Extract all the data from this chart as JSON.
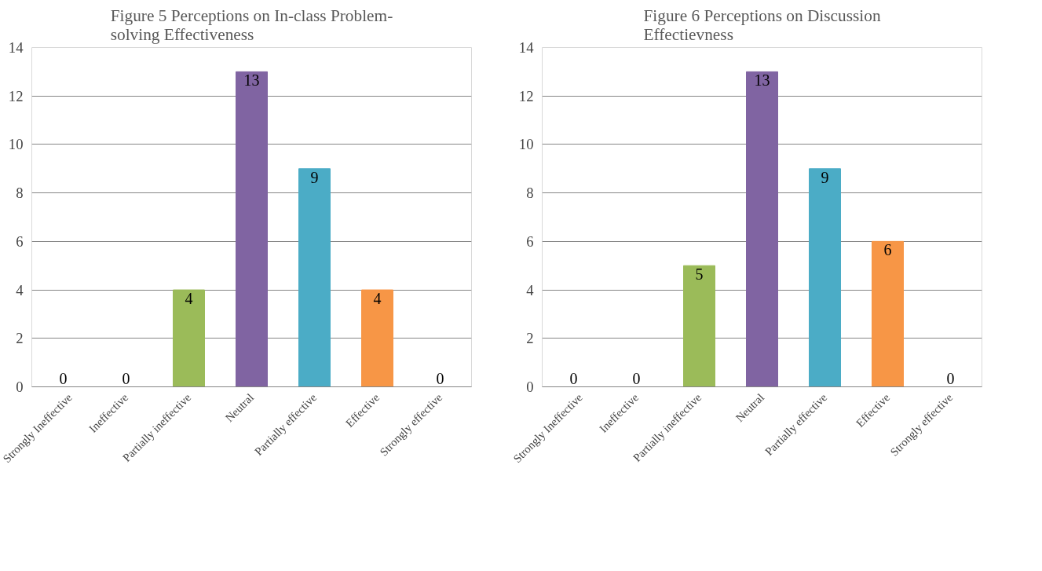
{
  "chart_data": [
    {
      "type": "bar",
      "title": "Figure 5 Perceptions on In-class Problem-solving  Effectiveness",
      "categories": [
        "Strongly Ineffective",
        "Ineffective",
        "Partially ineffective",
        "Neutral",
        "Partially effective",
        "Effective",
        "Strongly effective"
      ],
      "values": [
        0,
        0,
        4,
        13,
        9,
        4,
        0
      ],
      "colors": [
        "#4f81bd",
        "#c0504d",
        "#9bbb59",
        "#8064a2",
        "#4bacc6",
        "#f79646",
        "#2c4d75"
      ],
      "ylim": [
        0,
        14
      ],
      "yticks": [
        0,
        2,
        4,
        6,
        8,
        10,
        12,
        14
      ],
      "grid": "y",
      "data_labels": true
    },
    {
      "type": "bar",
      "title": "Figure 6 Perceptions on Discussion Effectievness",
      "categories": [
        "Strongly Ineffective",
        "Ineffective",
        "Partially ineffective",
        "Neutral",
        "Partially effective",
        "Effective",
        "Strongly effective"
      ],
      "values": [
        0,
        0,
        5,
        13,
        9,
        6,
        0
      ],
      "colors": [
        "#4f81bd",
        "#c0504d",
        "#9bbb59",
        "#8064a2",
        "#4bacc6",
        "#f79646",
        "#2c4d75"
      ],
      "ylim": [
        0,
        14
      ],
      "yticks": [
        0,
        2,
        4,
        6,
        8,
        10,
        12,
        14
      ],
      "grid": "y",
      "data_labels": true
    }
  ]
}
